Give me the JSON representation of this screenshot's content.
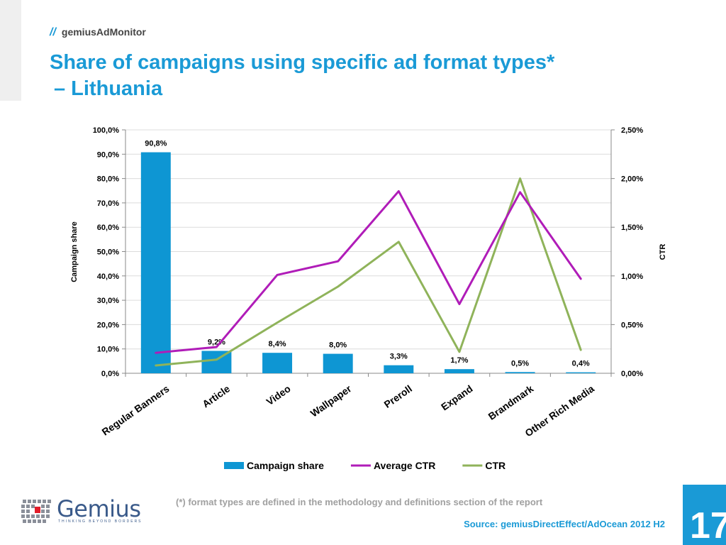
{
  "header": {
    "slashes": "//",
    "brand": "gemiusAdMonitor"
  },
  "title": {
    "line1": "Share of campaigns using specific ad format types*",
    "line2": "– Lithuania"
  },
  "chart_data": {
    "type": "bar",
    "categories": [
      "Regular Banners",
      "Article",
      "Video",
      "Wallpaper",
      "Preroll",
      "Expand",
      "Brandmark",
      "Other Rich Media"
    ],
    "ylabel": "Campaign share",
    "y2label": "CTR",
    "ylim": [
      0,
      100
    ],
    "y2lim": [
      0,
      2.5
    ],
    "yticks": [
      "0,0%",
      "10,0%",
      "20,0%",
      "30,0%",
      "40,0%",
      "50,0%",
      "60,0%",
      "70,0%",
      "80,0%",
      "90,0%",
      "100,0%"
    ],
    "y2ticks": [
      "0,00%",
      "0,50%",
      "1,00%",
      "1,50%",
      "2,00%",
      "2,50%"
    ],
    "bar_labels": [
      "90,8%",
      "9,2%",
      "8,4%",
      "8,0%",
      "3,3%",
      "1,7%",
      "0,5%",
      "0,4%"
    ],
    "grid": true,
    "legend_position": "bottom",
    "series": [
      {
        "name": "Campaign share",
        "type": "bar",
        "axis": "left",
        "color": "#0e96d3",
        "values": [
          90.8,
          9.2,
          8.4,
          8.0,
          3.3,
          1.7,
          0.5,
          0.4
        ]
      },
      {
        "name": "Average CTR",
        "type": "line",
        "axis": "right",
        "color": "#b01cb8",
        "values": [
          0.21,
          0.27,
          1.01,
          1.15,
          1.87,
          0.71,
          1.86,
          0.97
        ]
      },
      {
        "name": "CTR",
        "type": "line",
        "axis": "right",
        "color": "#8fb35a",
        "values": [
          0.08,
          0.14,
          0.52,
          0.89,
          1.35,
          0.22,
          2.0,
          0.24
        ]
      }
    ]
  },
  "footnote": "(*)  format types are defined in the methodology and definitions section of the report",
  "source": "Source: gemiusDirectEffect/AdOcean 2012 H2",
  "page_number": "17",
  "logo": {
    "word": "Gemius",
    "tagline": "THINKING BEYOND BORDERS"
  }
}
